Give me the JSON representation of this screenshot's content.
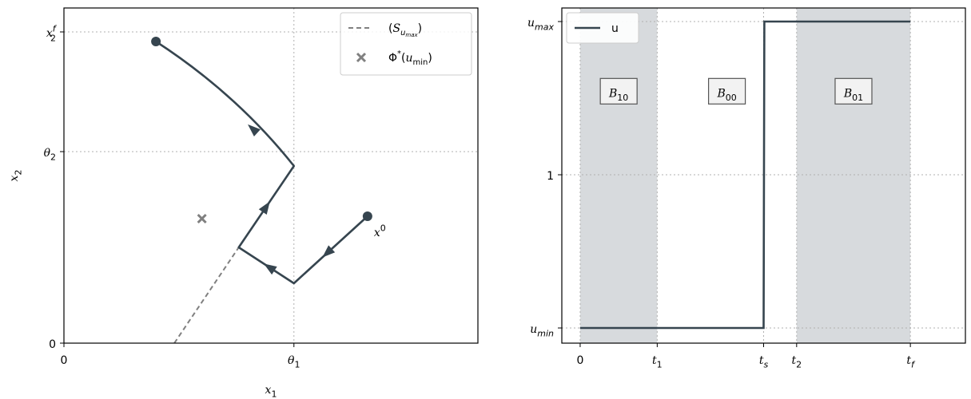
{
  "colors": {
    "trajectory": "#36454f",
    "dashed": "#808080",
    "marker": "#808080",
    "shade": "#d7dadd",
    "grid": "#b0b0b0"
  },
  "chart_data": [
    {
      "type": "line",
      "panel": "left",
      "xlabel": "x_1",
      "ylabel": "x_2",
      "xlim": [
        0,
        1.8
      ],
      "ylim": [
        0,
        1.4
      ],
      "xticks": [
        {
          "value": 0,
          "label": "0"
        },
        {
          "value": 1,
          "label": "θ_1"
        }
      ],
      "yticks": [
        {
          "value": 0,
          "label": "0"
        },
        {
          "value": 0.8,
          "label": "θ_2"
        },
        {
          "value": 1.3,
          "label": "x_2^f"
        }
      ],
      "grid": true,
      "legend_position": "top-right",
      "legend": [
        {
          "kind": "dashed-line",
          "label": "(S_u_max)"
        },
        {
          "kind": "x-marker",
          "label": "Φ*(u_min)"
        }
      ],
      "trajectory": [
        [
          1.32,
          0.53
        ],
        [
          1.0,
          0.25
        ],
        [
          0.76,
          0.4
        ],
        [
          1.0,
          0.74
        ],
        [
          0.4,
          1.26
        ]
      ],
      "trajectory_start_label": "x^0",
      "dashed_line": [
        [
          0.48,
          0.0
        ],
        [
          0.76,
          0.4
        ]
      ],
      "marker_x": [
        0.6,
        0.52
      ]
    },
    {
      "type": "line",
      "panel": "right",
      "xlim": [
        -0.05,
        1.05
      ],
      "ylim": [
        0.0,
        1.0
      ],
      "xticks": [
        {
          "value": 0,
          "label": "0"
        },
        {
          "value": 0.21,
          "label": "t_1"
        },
        {
          "value": 0.5,
          "label": "t_s"
        },
        {
          "value": 0.59,
          "label": "t_2"
        },
        {
          "value": 0.9,
          "label": "t_f"
        }
      ],
      "yticks": [
        {
          "value": 0,
          "label": "u_min"
        },
        {
          "value": 0.5,
          "label": "1"
        },
        {
          "value": 1,
          "label": "u_max"
        }
      ],
      "grid": true,
      "legend_position": "top-left",
      "series": [
        {
          "name": "u",
          "x": [
            0,
            0.5,
            0.502,
            0.9
          ],
          "y": [
            0,
            0,
            1,
            1
          ]
        }
      ],
      "shaded_regions": [
        [
          0,
          0.21
        ],
        [
          0.59,
          0.9
        ]
      ],
      "region_labels": [
        {
          "label": "B_10",
          "x": 0.105,
          "y": 0.77
        },
        {
          "label": "B_00",
          "x": 0.4,
          "y": 0.77
        },
        {
          "label": "B_01",
          "x": 0.745,
          "y": 0.77
        }
      ]
    }
  ]
}
